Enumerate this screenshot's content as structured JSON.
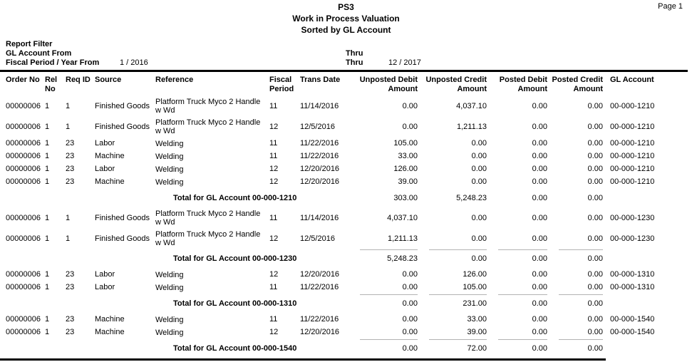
{
  "page": {
    "title": "PS3",
    "subtitle": "Work in Process Valuation",
    "sort_line": "Sorted by GL Account",
    "page_number": "Page 1"
  },
  "filters": {
    "heading": "Report Filter",
    "rows": [
      {
        "label": "GL Account From",
        "value": "",
        "thru_label": "Thru",
        "thru_value": ""
      },
      {
        "label": "Fiscal Period / Year From",
        "value": "1 / 2016",
        "thru_label": "Thru",
        "thru_value": "12 / 2017"
      }
    ]
  },
  "table": {
    "headers": [
      "Order No",
      "Rel No",
      "Req ID",
      "Source",
      "Reference",
      "Fiscal Period",
      "Trans Date",
      "Unposted Debit Amount",
      "Unposted Credit Amount",
      "Posted Debit Amount",
      "Posted Credit Amount",
      "GL Account"
    ],
    "sections": [
      {
        "gl_account": "00-000-1210",
        "rows": [
          {
            "order_no": "00000006",
            "rel_no": "1",
            "req_id": "1",
            "source": "Finished Goods",
            "reference": "Platform Truck Myco 2 Handle w Wd",
            "fiscal_period": "11",
            "trans_date": "11/14/2016",
            "unposted_debit": "0.00",
            "unposted_credit": "4,037.10",
            "posted_debit": "0.00",
            "posted_credit": "0.00",
            "gl_account": "00-000-1210"
          },
          {
            "order_no": "00000006",
            "rel_no": "1",
            "req_id": "1",
            "source": "Finished Goods",
            "reference": "Platform Truck Myco 2 Handle w Wd",
            "fiscal_period": "12",
            "trans_date": "12/5/2016",
            "unposted_debit": "0.00",
            "unposted_credit": "1,211.13",
            "posted_debit": "0.00",
            "posted_credit": "0.00",
            "gl_account": "00-000-1210"
          },
          {
            "order_no": "00000006",
            "rel_no": "1",
            "req_id": "23",
            "source": "Labor",
            "reference": "Welding",
            "fiscal_period": "11",
            "trans_date": "11/22/2016",
            "unposted_debit": "105.00",
            "unposted_credit": "0.00",
            "posted_debit": "0.00",
            "posted_credit": "0.00",
            "gl_account": "00-000-1210"
          },
          {
            "order_no": "00000006",
            "rel_no": "1",
            "req_id": "23",
            "source": "Machine",
            "reference": "Welding",
            "fiscal_period": "11",
            "trans_date": "11/22/2016",
            "unposted_debit": "33.00",
            "unposted_credit": "0.00",
            "posted_debit": "0.00",
            "posted_credit": "0.00",
            "gl_account": "00-000-1210"
          },
          {
            "order_no": "00000006",
            "rel_no": "1",
            "req_id": "23",
            "source": "Labor",
            "reference": "Welding",
            "fiscal_period": "12",
            "trans_date": "12/20/2016",
            "unposted_debit": "126.00",
            "unposted_credit": "0.00",
            "posted_debit": "0.00",
            "posted_credit": "0.00",
            "gl_account": "00-000-1210"
          },
          {
            "order_no": "00000006",
            "rel_no": "1",
            "req_id": "23",
            "source": "Machine",
            "reference": "Welding",
            "fiscal_period": "12",
            "trans_date": "12/20/2016",
            "unposted_debit": "39.00",
            "unposted_credit": "0.00",
            "posted_debit": "0.00",
            "posted_credit": "0.00",
            "gl_account": "00-000-1210"
          }
        ],
        "total_label": "Total for GL Account 00-000-1210",
        "totals": [
          "303.00",
          "5,248.23",
          "0.00",
          "0.00"
        ],
        "total_rule": false
      },
      {
        "gl_account": "00-000-1230",
        "rows": [
          {
            "order_no": "00000006",
            "rel_no": "1",
            "req_id": "1",
            "source": "Finished Goods",
            "reference": "Platform Truck Myco 2 Handle w Wd",
            "fiscal_period": "11",
            "trans_date": "11/14/2016",
            "unposted_debit": "4,037.10",
            "unposted_credit": "0.00",
            "posted_debit": "0.00",
            "posted_credit": "0.00",
            "gl_account": "00-000-1230"
          },
          {
            "order_no": "00000006",
            "rel_no": "1",
            "req_id": "1",
            "source": "Finished Goods",
            "reference": "Platform Truck Myco 2 Handle w Wd",
            "fiscal_period": "12",
            "trans_date": "12/5/2016",
            "unposted_debit": "1,211.13",
            "unposted_credit": "0.00",
            "posted_debit": "0.00",
            "posted_credit": "0.00",
            "gl_account": "00-000-1230"
          }
        ],
        "total_label": "Total for GL Account 00-000-1230",
        "totals": [
          "5,248.23",
          "0.00",
          "0.00",
          "0.00"
        ],
        "total_rule": true
      },
      {
        "gl_account": "00-000-1310",
        "rows": [
          {
            "order_no": "00000006",
            "rel_no": "1",
            "req_id": "23",
            "source": "Labor",
            "reference": "Welding",
            "fiscal_period": "12",
            "trans_date": "12/20/2016",
            "unposted_debit": "0.00",
            "unposted_credit": "126.00",
            "posted_debit": "0.00",
            "posted_credit": "0.00",
            "gl_account": "00-000-1310"
          },
          {
            "order_no": "00000006",
            "rel_no": "1",
            "req_id": "23",
            "source": "Labor",
            "reference": "Welding",
            "fiscal_period": "11",
            "trans_date": "11/22/2016",
            "unposted_debit": "0.00",
            "unposted_credit": "105.00",
            "posted_debit": "0.00",
            "posted_credit": "0.00",
            "gl_account": "00-000-1310"
          }
        ],
        "total_label": "Total for GL Account 00-000-1310",
        "totals": [
          "0.00",
          "231.00",
          "0.00",
          "0.00"
        ],
        "total_rule": true
      },
      {
        "gl_account": "00-000-1540",
        "rows": [
          {
            "order_no": "00000006",
            "rel_no": "1",
            "req_id": "23",
            "source": "Machine",
            "reference": "Welding",
            "fiscal_period": "11",
            "trans_date": "11/22/2016",
            "unposted_debit": "0.00",
            "unposted_credit": "33.00",
            "posted_debit": "0.00",
            "posted_credit": "0.00",
            "gl_account": "00-000-1540"
          },
          {
            "order_no": "00000006",
            "rel_no": "1",
            "req_id": "23",
            "source": "Machine",
            "reference": "Welding",
            "fiscal_period": "12",
            "trans_date": "12/20/2016",
            "unposted_debit": "0.00",
            "unposted_credit": "39.00",
            "posted_debit": "0.00",
            "posted_credit": "0.00",
            "gl_account": "00-000-1540"
          }
        ],
        "total_label": "Total for GL Account 00-000-1540",
        "totals": [
          "0.00",
          "72.00",
          "0.00",
          "0.00"
        ],
        "total_rule": true
      }
    ]
  }
}
